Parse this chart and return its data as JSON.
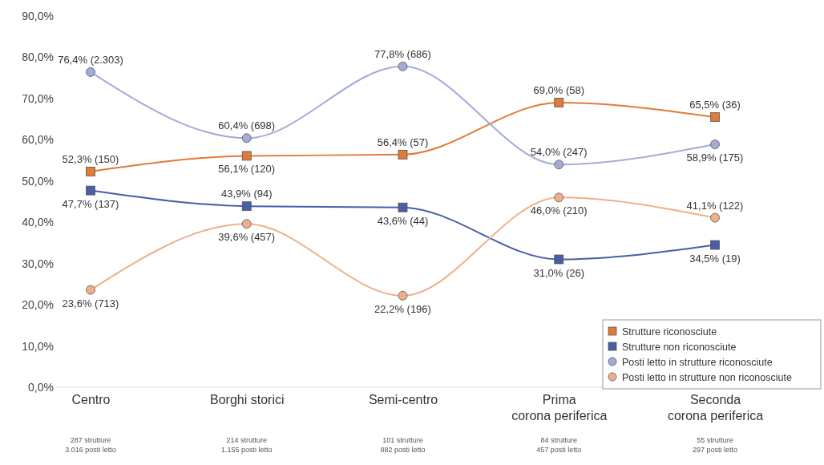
{
  "chart_data": {
    "type": "line",
    "categories": [
      "Centro",
      "Borghi storici",
      "Semi-centro",
      "Prima corona periferica",
      "Seconda corona periferica"
    ],
    "ylim": [
      0,
      90
    ],
    "yticks": [
      {
        "value": 0,
        "label": "0,0%"
      },
      {
        "value": 10,
        "label": "10,0%"
      },
      {
        "value": 20,
        "label": "20,0%"
      },
      {
        "value": 30,
        "label": "30,0%"
      },
      {
        "value": 40,
        "label": "40,0%"
      },
      {
        "value": 50,
        "label": "50,0%"
      },
      {
        "value": 60,
        "label": "60,0%"
      },
      {
        "value": 70,
        "label": "70,0%"
      },
      {
        "value": 80,
        "label": "80,0%"
      },
      {
        "value": 90,
        "label": "90,0%"
      }
    ],
    "grid": false,
    "legend": "bottom right",
    "series": [
      {
        "name": "Strutture riconosciute",
        "color": "#e07b39",
        "marker": "square",
        "values": [
          52.3,
          56.1,
          56.4,
          69.0,
          65.5
        ],
        "value_labels": [
          "52,3% (150)",
          "56,1% (120)",
          "56,4% (57)",
          "69,0% (58)",
          "65,5% (36)"
        ]
      },
      {
        "name": "Strutture non riconosciute",
        "color": "#4a5da6",
        "marker": "square",
        "values": [
          47.7,
          43.9,
          43.6,
          31.0,
          34.5
        ],
        "value_labels": [
          "47,7% (137)",
          "43,9% (94)",
          "43,6% (44)",
          "31,0% (26)",
          "34,5% (19)"
        ]
      },
      {
        "name": "Posti letto in strutture riconosciute",
        "color": "#a3acd9",
        "marker": "circle",
        "values": [
          76.4,
          60.4,
          77.8,
          54.0,
          58.9
        ],
        "value_labels": [
          "76,4% (2.303)",
          "60,4% (698)",
          "77,8% (686)",
          "54,0% (247)",
          "58,9% (175)"
        ]
      },
      {
        "name": "Posti letto in strutture non riconosciute",
        "color": "#eeb08a",
        "marker": "circle",
        "values": [
          23.6,
          39.6,
          22.2,
          46.0,
          41.1
        ],
        "value_labels": [
          "23,6% (713)",
          "39,6% (457)",
          "22,2% (196)",
          "46,0% (210)",
          "41,1% (122)"
        ]
      }
    ],
    "annotations": [
      "287 strutture\n3.016 posti letto",
      "214 strutture\n1.155 posti letto",
      "101 strutture\n882 posti letto",
      "84 strutture\n457 posti letto",
      "55 strutture\n297 posti letto"
    ]
  }
}
